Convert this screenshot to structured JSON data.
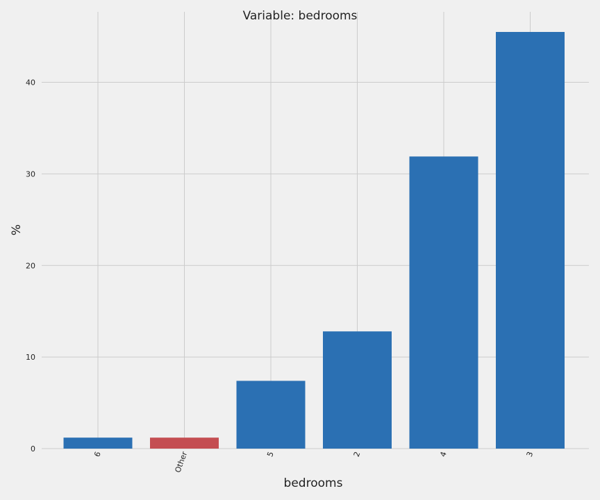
{
  "chart_data": {
    "type": "bar",
    "title": "Variable: bedrooms",
    "xlabel": "bedrooms",
    "ylabel": "%",
    "categories": [
      "6",
      "Other",
      "5",
      "2",
      "4",
      "3"
    ],
    "values": [
      1.2,
      1.2,
      7.4,
      12.8,
      31.9,
      45.5
    ],
    "bar_colors": [
      "#2b70b3",
      "#c44e52",
      "#2b70b3",
      "#2b70b3",
      "#2b70b3",
      "#2b70b3"
    ],
    "yticks": [
      0,
      10,
      20,
      30,
      40
    ],
    "ylim": [
      0,
      47.7
    ],
    "grid": true,
    "x_tick_rotation_deg": -70
  }
}
